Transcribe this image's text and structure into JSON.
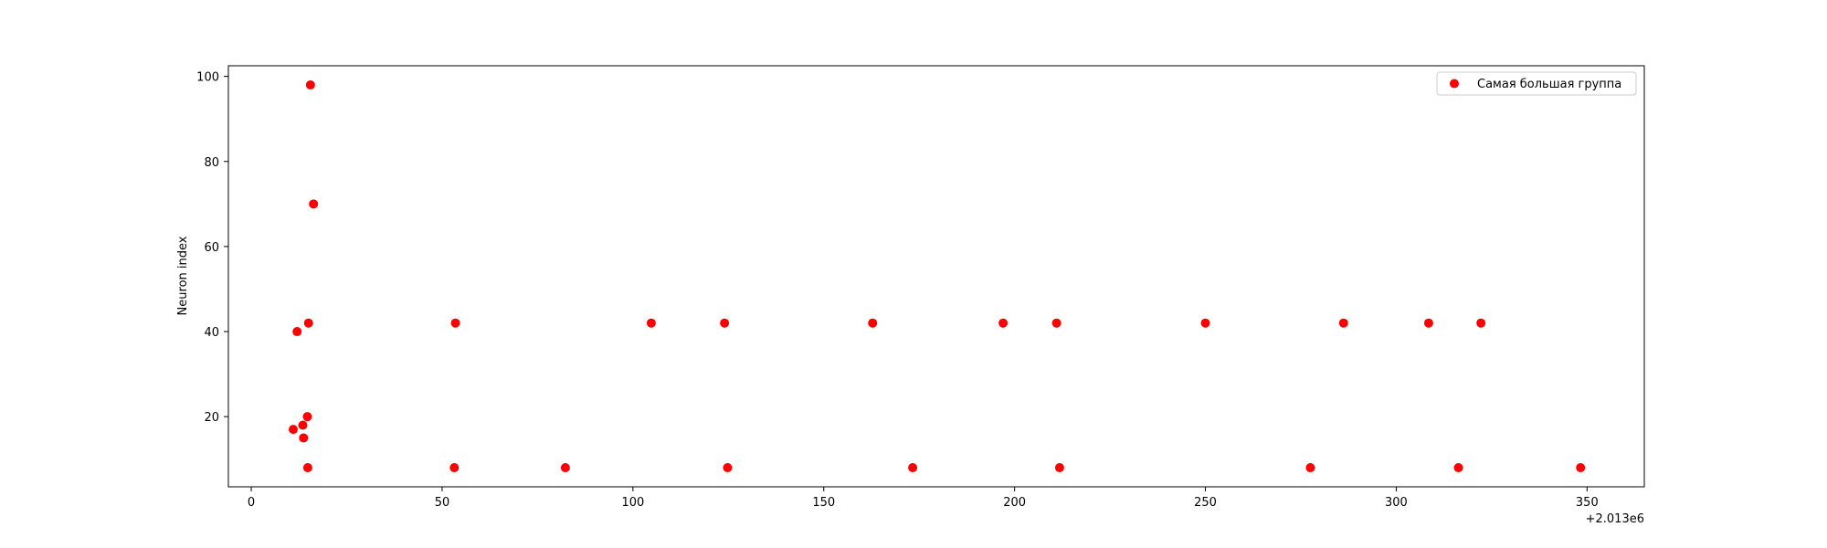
{
  "chart_data": {
    "type": "scatter",
    "title": "",
    "xlabel": "",
    "ylabel": "Neuron index",
    "x_offset_label": "+2.013e6",
    "xlim": [
      -6,
      365
    ],
    "ylim": [
      3.5,
      102.5
    ],
    "xticks": [
      0,
      50,
      100,
      150,
      200,
      250,
      300,
      350
    ],
    "yticks": [
      20,
      40,
      60,
      80,
      100
    ],
    "grid": false,
    "legend": {
      "position": "top-right"
    },
    "series": [
      {
        "name": "Самая большая группа",
        "color": "#ff0000",
        "points": [
          {
            "x": 11,
            "y": 17
          },
          {
            "x": 12,
            "y": 40
          },
          {
            "x": 13.5,
            "y": 18
          },
          {
            "x": 13.7,
            "y": 15
          },
          {
            "x": 14.7,
            "y": 20
          },
          {
            "x": 14.8,
            "y": 8
          },
          {
            "x": 15,
            "y": 42
          },
          {
            "x": 15.5,
            "y": 98
          },
          {
            "x": 16.3,
            "y": 70
          },
          {
            "x": 53.2,
            "y": 8
          },
          {
            "x": 53.5,
            "y": 42
          },
          {
            "x": 82.3,
            "y": 8
          },
          {
            "x": 104.8,
            "y": 42
          },
          {
            "x": 124,
            "y": 42
          },
          {
            "x": 124.8,
            "y": 8
          },
          {
            "x": 162.8,
            "y": 42
          },
          {
            "x": 173.3,
            "y": 8
          },
          {
            "x": 197,
            "y": 42
          },
          {
            "x": 211,
            "y": 42
          },
          {
            "x": 211.8,
            "y": 8
          },
          {
            "x": 250,
            "y": 42
          },
          {
            "x": 277.5,
            "y": 8
          },
          {
            "x": 286.2,
            "y": 42
          },
          {
            "x": 308.5,
            "y": 42
          },
          {
            "x": 316.3,
            "y": 8
          },
          {
            "x": 322.2,
            "y": 42
          },
          {
            "x": 348.3,
            "y": 8
          }
        ]
      }
    ]
  }
}
